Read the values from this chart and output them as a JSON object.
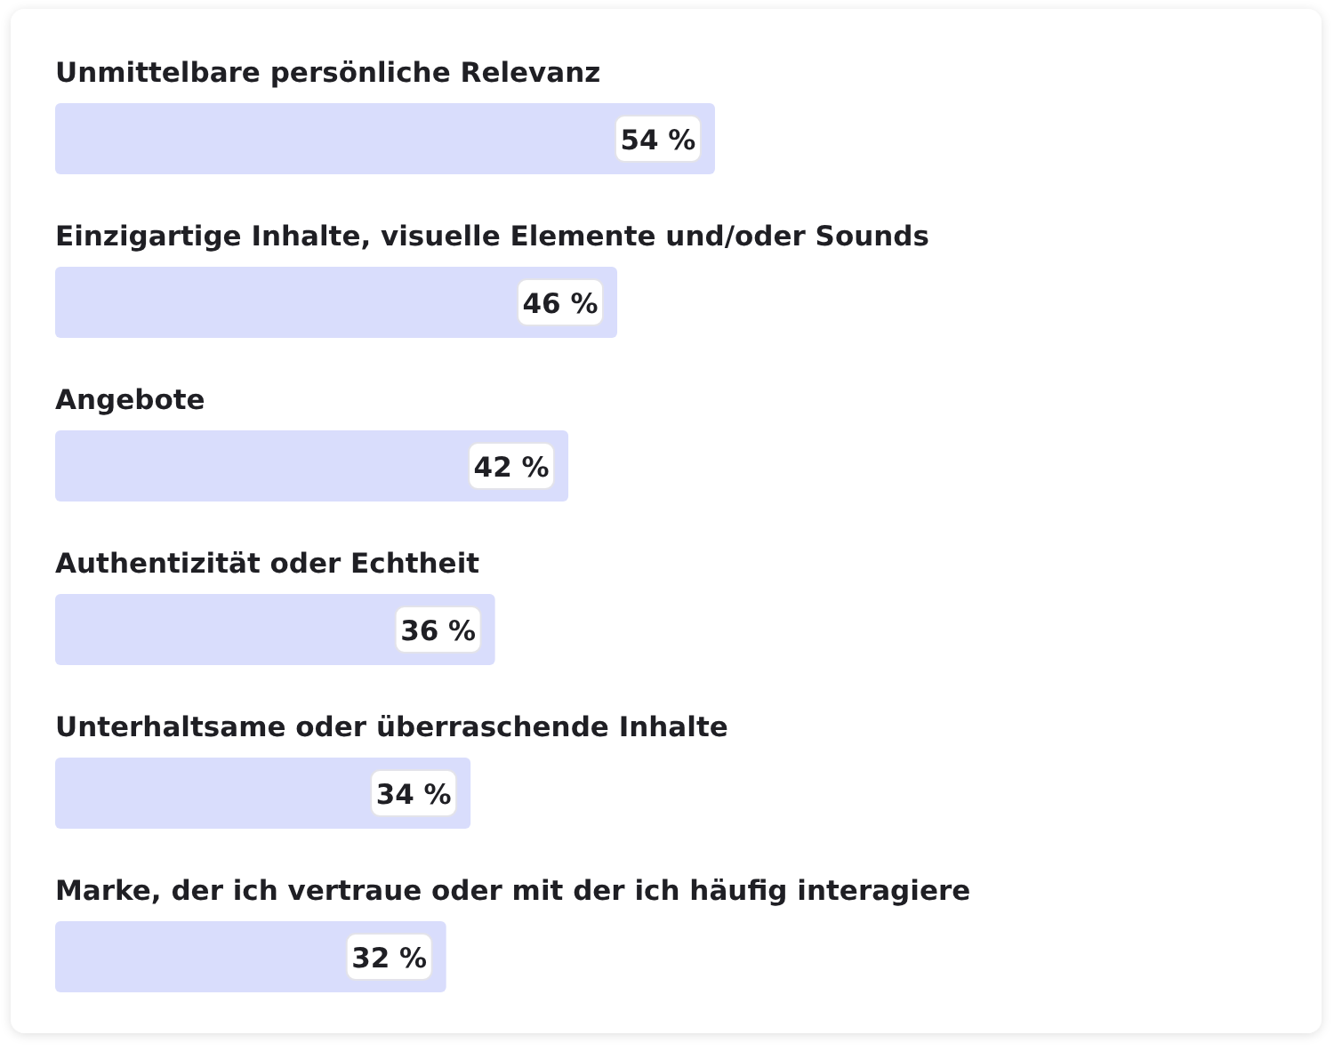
{
  "chart_data": {
    "type": "bar",
    "orientation": "horizontal",
    "categories": [
      "Unmittelbare persönliche Relevanz",
      "Einzigartige Inhalte, visuelle Elemente und/oder Sounds",
      "Angebote",
      "Authentizität oder Echtheit",
      "Unterhaltsame oder überraschende Inhalte",
      "Marke, der ich vertraue oder mit der ich häufig interagiere"
    ],
    "values": [
      54,
      46,
      42,
      36,
      34,
      32
    ],
    "value_labels": [
      "54 %",
      "46 %",
      "42 %",
      "36 %",
      "34 %",
      "32 %"
    ],
    "color": "#d9ddfc"
  }
}
